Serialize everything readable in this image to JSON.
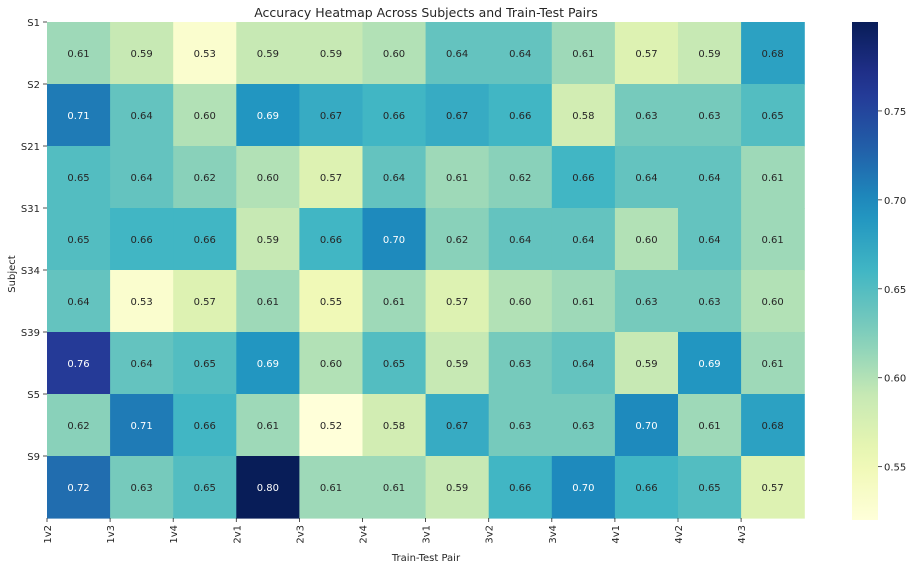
{
  "chart_data": {
    "type": "heatmap",
    "title": "Accuracy Heatmap Across Subjects and Train-Test Pairs",
    "xlabel": "Train-Test Pair",
    "ylabel": "Subject",
    "rows": [
      "S1",
      "S2",
      "S21",
      "S31",
      "S34",
      "S39",
      "S5",
      "S9"
    ],
    "x_tick_labels": [
      "1v2",
      "1v3",
      "1v4",
      "2v1",
      "2v3",
      "2v4",
      "3v1",
      "3v2",
      "3v4",
      "4v1",
      "4v2",
      "4v3"
    ],
    "values": [
      [
        0.61,
        0.59,
        0.53,
        0.59,
        0.59,
        0.6,
        0.64,
        0.64,
        0.61,
        0.57,
        0.59,
        0.68
      ],
      [
        0.71,
        0.64,
        0.6,
        0.69,
        0.67,
        0.66,
        0.67,
        0.66,
        0.58,
        0.63,
        0.63,
        0.65
      ],
      [
        0.65,
        0.64,
        0.62,
        0.6,
        0.57,
        0.64,
        0.61,
        0.62,
        0.66,
        0.64,
        0.64,
        0.61
      ],
      [
        0.65,
        0.66,
        0.66,
        0.59,
        0.66,
        0.7,
        0.62,
        0.64,
        0.64,
        0.6,
        0.64,
        0.61
      ],
      [
        0.64,
        0.53,
        0.57,
        0.61,
        0.55,
        0.61,
        0.57,
        0.6,
        0.61,
        0.63,
        0.63,
        0.6
      ],
      [
        0.76,
        0.64,
        0.65,
        0.69,
        0.6,
        0.65,
        0.59,
        0.63,
        0.64,
        0.59,
        0.69,
        0.61
      ],
      [
        0.62,
        0.71,
        0.66,
        0.61,
        0.52,
        0.58,
        0.67,
        0.63,
        0.63,
        0.7,
        0.61,
        0.68
      ],
      [
        0.72,
        0.63,
        0.65,
        0.8,
        0.61,
        0.61,
        0.59,
        0.66,
        0.7,
        0.66,
        0.65,
        0.57
      ]
    ],
    "colormap": "YlGnBu",
    "colorbar_range": [
      0.52,
      0.8
    ],
    "colorbar_ticks": [
      0.55,
      0.6,
      0.65,
      0.7,
      0.75
    ],
    "colors": {
      "low": "#ffffd9",
      "high": "#081d58"
    }
  }
}
